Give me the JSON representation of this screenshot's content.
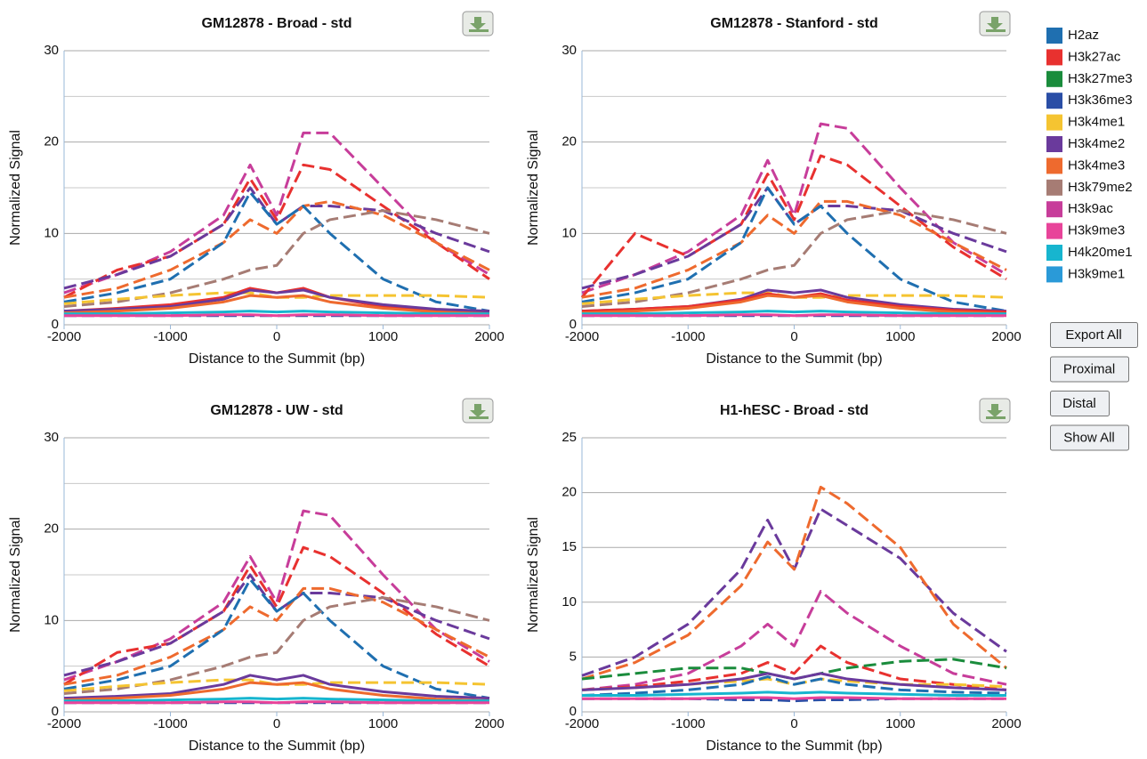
{
  "chart_data": [
    {
      "type": "line",
      "title": "GM12878 - Broad - std",
      "x_label": "Distance to the Summit (bp)",
      "y_label": "Normalized Signal",
      "xlim": [
        -2000,
        2000
      ],
      "xticks": [
        -2000,
        -1000,
        0,
        1000,
        2000
      ],
      "ylim": [
        0,
        30
      ],
      "yticks": [
        0,
        10,
        20,
        30
      ],
      "minor_yticks": [
        5,
        15,
        25
      ],
      "grid": true,
      "x": [
        -2000,
        -1500,
        -1000,
        -500,
        -250,
        0,
        250,
        500,
        1000,
        1500,
        2000
      ],
      "series": [
        {
          "name": "H3k9ac",
          "dashed": true,
          "values": [
            3.5,
            5.5,
            8,
            12,
            17.5,
            12,
            21,
            21,
            15,
            9,
            5.5
          ]
        },
        {
          "name": "H3k27ac",
          "dashed": true,
          "values": [
            3,
            6,
            7.5,
            11,
            16,
            11.5,
            17.5,
            17,
            13,
            9,
            5
          ]
        },
        {
          "name": "H3k4me2",
          "dashed": true,
          "values": [
            4,
            5.5,
            7.5,
            11,
            15,
            11,
            13,
            13,
            12.5,
            10,
            8
          ]
        },
        {
          "name": "H3k4me3",
          "dashed": true,
          "values": [
            3,
            4,
            6,
            9,
            11.5,
            10,
            13,
            13.5,
            12,
            9,
            6
          ]
        },
        {
          "name": "H2az",
          "dashed": true,
          "values": [
            2.5,
            3.5,
            5,
            9,
            14.5,
            11,
            13,
            10,
            5,
            2.5,
            1.5
          ]
        },
        {
          "name": "H3k79me2",
          "dashed": true,
          "values": [
            2,
            2.5,
            3.5,
            5,
            6,
            6.5,
            10,
            11.5,
            12.5,
            11.5,
            10
          ]
        },
        {
          "name": "H3k4me1",
          "dashed": true,
          "values": [
            2.3,
            2.8,
            3.2,
            3.5,
            3.5,
            3,
            3,
            3.2,
            3.2,
            3.2,
            3
          ]
        },
        {
          "name": "H3k36me3",
          "dashed": true,
          "values": [
            1,
            1,
            1,
            1,
            1,
            1,
            1,
            1,
            1,
            1,
            1
          ]
        },
        {
          "name": "H3k27ac",
          "dashed": false,
          "values": [
            1.5,
            1.8,
            2.2,
            3,
            4,
            3.5,
            4,
            3,
            2,
            1.6,
            1.4
          ]
        },
        {
          "name": "H3k4me2",
          "dashed": false,
          "values": [
            1.5,
            1.7,
            2,
            2.8,
            3.8,
            3.5,
            3.8,
            3,
            2.2,
            1.7,
            1.5
          ]
        },
        {
          "name": "H3k4me3",
          "dashed": false,
          "values": [
            1.3,
            1.5,
            1.8,
            2.5,
            3.2,
            3,
            3.2,
            2.5,
            1.8,
            1.4,
            1.2
          ]
        },
        {
          "name": "H4k20me1",
          "dashed": false,
          "values": [
            1.2,
            1.2,
            1.3,
            1.4,
            1.5,
            1.4,
            1.5,
            1.4,
            1.3,
            1.2,
            1.2
          ]
        },
        {
          "name": "H3k9me3",
          "dashed": false,
          "values": [
            1,
            1,
            1,
            1.1,
            1.1,
            1,
            1.1,
            1.1,
            1,
            1,
            1
          ]
        }
      ]
    },
    {
      "type": "line",
      "title": "GM12878 - Stanford - std",
      "x_label": "Distance to the Summit (bp)",
      "y_label": "Normalized Signal",
      "xlim": [
        -2000,
        2000
      ],
      "xticks": [
        -2000,
        -1000,
        0,
        1000,
        2000
      ],
      "ylim": [
        0,
        30
      ],
      "yticks": [
        0,
        10,
        20,
        30
      ],
      "minor_yticks": [
        5,
        15,
        25
      ],
      "grid": true,
      "x": [
        -2000,
        -1500,
        -1000,
        -500,
        -250,
        0,
        250,
        500,
        1000,
        1500,
        2000
      ],
      "series": [
        {
          "name": "H3k9ac",
          "dashed": true,
          "values": [
            3.5,
            5.5,
            8,
            12,
            18,
            12,
            22,
            21.5,
            15,
            9,
            5.5
          ]
        },
        {
          "name": "H3k27ac",
          "dashed": true,
          "values": [
            3,
            10,
            7.5,
            11,
            16.5,
            11.5,
            18.5,
            17.5,
            13,
            8.5,
            5
          ]
        },
        {
          "name": "H3k4me2",
          "dashed": true,
          "values": [
            4,
            5.5,
            7.5,
            11,
            15,
            11,
            13,
            13,
            12.5,
            10,
            8
          ]
        },
        {
          "name": "H3k4me3",
          "dashed": true,
          "values": [
            3,
            4,
            6,
            9,
            12,
            10,
            13.5,
            13.5,
            12,
            9,
            6
          ]
        },
        {
          "name": "H2az",
          "dashed": true,
          "values": [
            2.5,
            3.5,
            5,
            9,
            15,
            11,
            13,
            10,
            5,
            2.5,
            1.5
          ]
        },
        {
          "name": "H3k79me2",
          "dashed": true,
          "values": [
            2,
            2.5,
            3.5,
            5,
            6,
            6.5,
            10,
            11.5,
            12.5,
            11.5,
            10
          ]
        },
        {
          "name": "H3k4me1",
          "dashed": true,
          "values": [
            2.3,
            2.8,
            3.2,
            3.5,
            3.5,
            3,
            3,
            3.2,
            3.2,
            3.2,
            3
          ]
        },
        {
          "name": "H3k36me3",
          "dashed": true,
          "values": [
            1,
            1,
            1,
            1,
            1,
            1,
            1,
            1,
            1,
            1,
            1
          ]
        },
        {
          "name": "H3k4me2",
          "dashed": false,
          "values": [
            1.5,
            1.7,
            2,
            2.8,
            3.8,
            3.5,
            3.8,
            3,
            2.2,
            1.7,
            1.5
          ]
        },
        {
          "name": "H3k27ac",
          "dashed": false,
          "values": [
            1.5,
            1.7,
            2,
            2.7,
            3.4,
            3,
            3.4,
            2.7,
            2,
            1.6,
            1.4
          ]
        },
        {
          "name": "H3k4me3",
          "dashed": false,
          "values": [
            1.3,
            1.5,
            1.8,
            2.5,
            3.2,
            3,
            3.2,
            2.5,
            1.8,
            1.4,
            1.2
          ]
        },
        {
          "name": "H4k20me1",
          "dashed": false,
          "values": [
            1.2,
            1.2,
            1.3,
            1.4,
            1.5,
            1.4,
            1.5,
            1.4,
            1.3,
            1.2,
            1.2
          ]
        },
        {
          "name": "H3k9me3",
          "dashed": false,
          "values": [
            1,
            1,
            1,
            1.1,
            1.1,
            1,
            1.1,
            1.1,
            1,
            1,
            1
          ]
        }
      ]
    },
    {
      "type": "line",
      "title": "GM12878 - UW - std",
      "x_label": "Distance to the Summit (bp)",
      "y_label": "Normalized Signal",
      "xlim": [
        -2000,
        2000
      ],
      "xticks": [
        -2000,
        -1000,
        0,
        1000,
        2000
      ],
      "ylim": [
        0,
        30
      ],
      "yticks": [
        0,
        10,
        20,
        30
      ],
      "minor_yticks": [
        5,
        15,
        25
      ],
      "grid": true,
      "x": [
        -2000,
        -1500,
        -1000,
        -500,
        -250,
        0,
        250,
        500,
        1000,
        1500,
        2000
      ],
      "series": [
        {
          "name": "H3k9ac",
          "dashed": true,
          "values": [
            3.5,
            5.5,
            8,
            12,
            17,
            12,
            22,
            21.5,
            15,
            9,
            5.5
          ]
        },
        {
          "name": "H3k27ac",
          "dashed": true,
          "values": [
            3,
            6.5,
            7.5,
            11,
            16,
            11.5,
            18,
            17,
            13,
            8.5,
            5
          ]
        },
        {
          "name": "H3k4me2",
          "dashed": true,
          "values": [
            4,
            5.5,
            7.5,
            11,
            15,
            11,
            13,
            13,
            12.5,
            10,
            8
          ]
        },
        {
          "name": "H3k4me3",
          "dashed": true,
          "values": [
            3,
            4,
            6,
            9,
            11.5,
            10,
            13.5,
            13.5,
            12,
            9,
            6
          ]
        },
        {
          "name": "H2az",
          "dashed": true,
          "values": [
            2.5,
            3.5,
            5,
            9,
            14.5,
            11,
            13,
            10,
            5,
            2.5,
            1.5
          ]
        },
        {
          "name": "H3k79me2",
          "dashed": true,
          "values": [
            2,
            2.5,
            3.5,
            5,
            6,
            6.5,
            10,
            11.5,
            12.5,
            11.5,
            10
          ]
        },
        {
          "name": "H3k4me1",
          "dashed": true,
          "values": [
            2.3,
            2.8,
            3.2,
            3.5,
            3.5,
            3,
            3,
            3.2,
            3.2,
            3.2,
            3
          ]
        },
        {
          "name": "H3k36me3",
          "dashed": true,
          "values": [
            1,
            1,
            1,
            1,
            1,
            1,
            1,
            1,
            1,
            1,
            1
          ]
        },
        {
          "name": "H3k4me2",
          "dashed": false,
          "values": [
            1.5,
            1.7,
            2,
            3,
            4,
            3.5,
            4,
            3,
            2.2,
            1.7,
            1.5
          ]
        },
        {
          "name": "H3k4me3",
          "dashed": false,
          "values": [
            1.3,
            1.5,
            1.8,
            2.5,
            3.2,
            3,
            3.2,
            2.5,
            1.8,
            1.4,
            1.2
          ]
        },
        {
          "name": "H4k20me1",
          "dashed": false,
          "values": [
            1.2,
            1.2,
            1.3,
            1.4,
            1.5,
            1.4,
            1.5,
            1.4,
            1.3,
            1.2,
            1.2
          ]
        },
        {
          "name": "H3k9me3",
          "dashed": false,
          "values": [
            1,
            1,
            1,
            1.1,
            1.1,
            1,
            1.1,
            1.1,
            1,
            1,
            1
          ]
        }
      ]
    },
    {
      "type": "line",
      "title": "H1-hESC - Broad - std",
      "x_label": "Distance to the Summit (bp)",
      "y_label": "Normalized Signal",
      "xlim": [
        -2000,
        2000
      ],
      "xticks": [
        -2000,
        -1000,
        0,
        1000,
        2000
      ],
      "ylim": [
        0,
        25
      ],
      "yticks": [
        0,
        5,
        10,
        15,
        20,
        25
      ],
      "minor_yticks": [],
      "grid": true,
      "x": [
        -2000,
        -1500,
        -1000,
        -500,
        -250,
        0,
        250,
        500,
        1000,
        1500,
        2000
      ],
      "series": [
        {
          "name": "H3k4me2",
          "dashed": true,
          "values": [
            3.3,
            5,
            8,
            13,
            17.5,
            13,
            18.5,
            17,
            14,
            9,
            5.5
          ]
        },
        {
          "name": "H3k4me3",
          "dashed": true,
          "values": [
            3,
            4.5,
            7,
            11.5,
            15.5,
            13,
            20.5,
            19,
            15,
            8,
            4
          ]
        },
        {
          "name": "H3k9ac",
          "dashed": true,
          "values": [
            2,
            2.5,
            3.5,
            6,
            8,
            6,
            11,
            9,
            6,
            3.5,
            2.5
          ]
        },
        {
          "name": "H3k27ac",
          "dashed": true,
          "values": [
            2,
            2.3,
            2.8,
            3.5,
            4.5,
            3.5,
            6,
            4.5,
            3,
            2.5,
            2
          ]
        },
        {
          "name": "H3k27me3",
          "dashed": true,
          "values": [
            3,
            3.5,
            4,
            4,
            3.5,
            3,
            3.5,
            4,
            4.6,
            4.8,
            4
          ]
        },
        {
          "name": "H3k4me1",
          "dashed": true,
          "values": [
            2,
            2.2,
            2.5,
            2.8,
            3,
            2.5,
            3,
            2.8,
            2.5,
            2.5,
            2.3
          ]
        },
        {
          "name": "H2az",
          "dashed": true,
          "values": [
            1.5,
            1.7,
            2,
            2.5,
            3.2,
            2.5,
            3,
            2.5,
            2,
            1.8,
            1.7
          ]
        },
        {
          "name": "H3k36me3",
          "dashed": true,
          "values": [
            1.2,
            1.2,
            1.2,
            1.1,
            1.1,
            1,
            1.1,
            1.1,
            1.2,
            1.2,
            1.2
          ]
        },
        {
          "name": "H3k4me2",
          "dashed": false,
          "values": [
            2,
            2.2,
            2.5,
            3,
            3.5,
            3,
            3.5,
            3,
            2.5,
            2.2,
            2
          ]
        },
        {
          "name": "H4k20me1",
          "dashed": false,
          "values": [
            1.5,
            1.5,
            1.6,
            1.7,
            1.8,
            1.7,
            1.8,
            1.7,
            1.6,
            1.5,
            1.5
          ]
        },
        {
          "name": "H3k9me3",
          "dashed": false,
          "values": [
            1.2,
            1.2,
            1.2,
            1.3,
            1.3,
            1.2,
            1.3,
            1.3,
            1.2,
            1.2,
            1.2
          ]
        }
      ]
    }
  ],
  "legend": [
    {
      "name": "H2az",
      "color": "#1f6fb0"
    },
    {
      "name": "H3k27ac",
      "color": "#e8312f"
    },
    {
      "name": "H3k27me3",
      "color": "#1a8c3c"
    },
    {
      "name": "H3k36me3",
      "color": "#2a4ea6"
    },
    {
      "name": "H3k4me1",
      "color": "#f5c431"
    },
    {
      "name": "H3k4me2",
      "color": "#6a3a9c"
    },
    {
      "name": "H3k4me3",
      "color": "#ee6a2e"
    },
    {
      "name": "H3k79me2",
      "color": "#a67c74"
    },
    {
      "name": "H3k9ac",
      "color": "#c73d9a"
    },
    {
      "name": "H3k9me3",
      "color": "#e8449a"
    },
    {
      "name": "H4k20me1",
      "color": "#17b5cf"
    },
    {
      "name": "H3k9me1",
      "color": "#2a9ad8"
    }
  ],
  "buttons": [
    "Export All",
    "Proximal",
    "Distal",
    "Show All"
  ]
}
